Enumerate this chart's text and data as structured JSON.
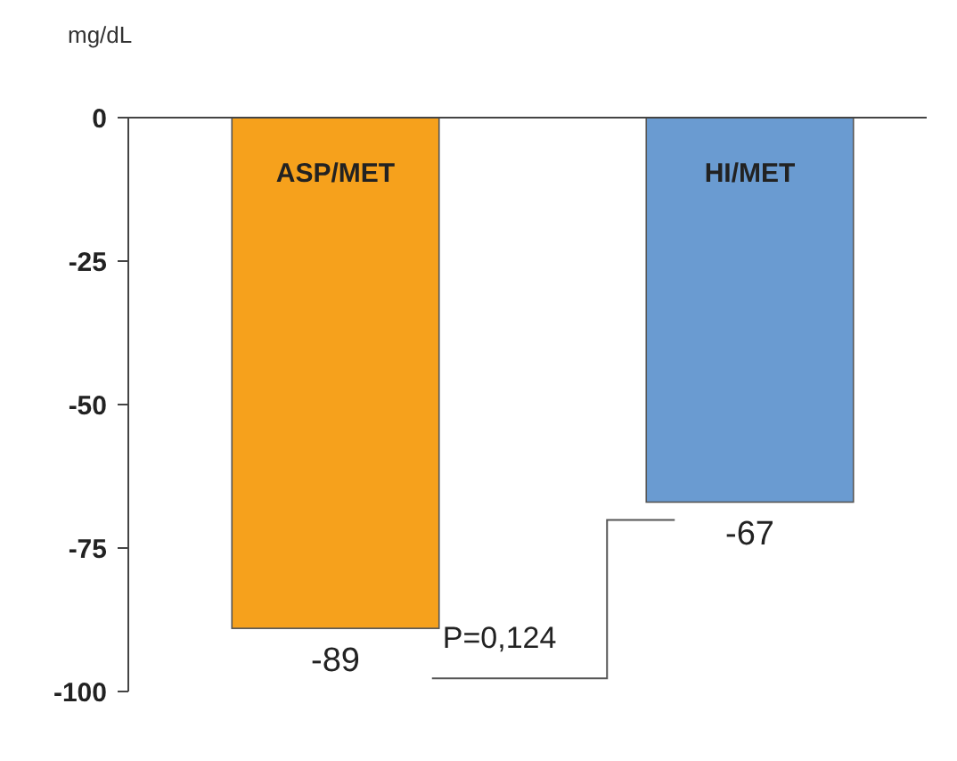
{
  "chart_data": {
    "type": "bar",
    "ylabel": "mg/dL",
    "categories": [
      "ASP/MET",
      "HI/MET"
    ],
    "values": [
      -89,
      -67
    ],
    "colors": [
      "#f6a11c",
      "#6a9bd1"
    ],
    "ylim": [
      -100,
      0
    ],
    "yticks": [
      0,
      -25,
      -50,
      -75,
      -100
    ],
    "data_labels": true,
    "grid": false,
    "annotations": [
      "P=0,124"
    ]
  }
}
